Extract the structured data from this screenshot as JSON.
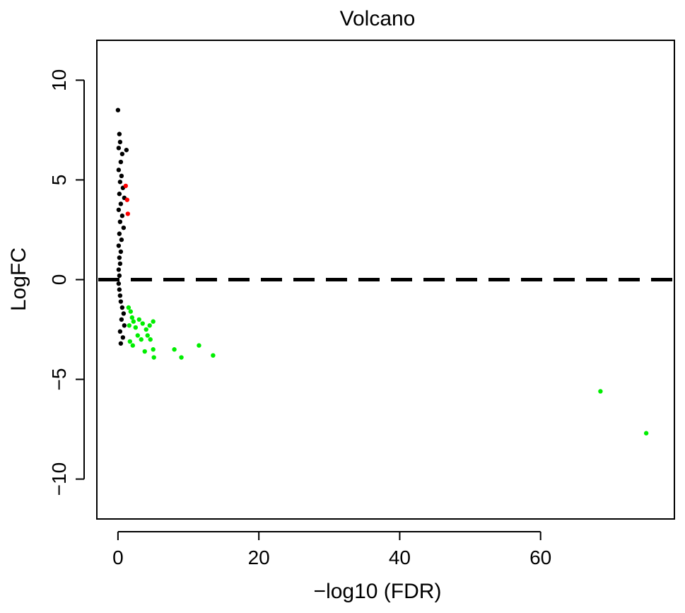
{
  "chart_data": {
    "type": "scatter",
    "title": "Volcano",
    "xlabel": "−log10 (FDR)",
    "ylabel": "LogFC",
    "xlim": [
      -3,
      79
    ],
    "ylim": [
      -12,
      12
    ],
    "xticks": [
      0,
      20,
      40,
      60
    ],
    "xtick_labels": [
      "0",
      "20",
      "40",
      "60"
    ],
    "yticks": [
      -10,
      -5,
      0,
      5,
      10
    ],
    "ytick_labels": [
      "−10",
      "−5",
      "0",
      "5",
      "10"
    ],
    "grid": false,
    "legend": "none",
    "reference_line": {
      "y": 0,
      "style": "dashed",
      "color": "#000000"
    },
    "series": [
      {
        "color": "#000000",
        "points": [
          [
            0.0,
            8.5
          ],
          [
            0.2,
            7.3
          ],
          [
            0.3,
            6.9
          ],
          [
            0.1,
            6.6
          ],
          [
            1.2,
            6.5
          ],
          [
            0.6,
            6.3
          ],
          [
            0.4,
            5.9
          ],
          [
            0.1,
            5.5
          ],
          [
            0.5,
            5.2
          ],
          [
            0.3,
            4.9
          ],
          [
            0.7,
            4.6
          ],
          [
            0.2,
            4.3
          ],
          [
            0.9,
            4.1
          ],
          [
            0.4,
            3.8
          ],
          [
            0.1,
            3.5
          ],
          [
            0.6,
            3.2
          ],
          [
            0.3,
            2.9
          ],
          [
            0.8,
            2.6
          ],
          [
            0.2,
            2.3
          ],
          [
            0.5,
            2.0
          ],
          [
            0.1,
            1.7
          ],
          [
            0.4,
            1.4
          ],
          [
            0.2,
            1.1
          ],
          [
            0.3,
            0.8
          ],
          [
            0.1,
            0.5
          ],
          [
            0.2,
            0.2
          ],
          [
            0.1,
            -0.2
          ],
          [
            0.2,
            -0.5
          ],
          [
            0.3,
            -0.8
          ],
          [
            0.4,
            -1.1
          ],
          [
            0.6,
            -1.4
          ],
          [
            0.8,
            -1.7
          ],
          [
            0.5,
            -2.0
          ],
          [
            0.9,
            -2.3
          ],
          [
            0.3,
            -2.6
          ],
          [
            0.7,
            -2.9
          ],
          [
            0.4,
            -3.2
          ]
        ]
      },
      {
        "color": "#ff0000",
        "points": [
          [
            1.1,
            4.7
          ],
          [
            1.3,
            4.0
          ],
          [
            1.4,
            3.3
          ]
        ]
      },
      {
        "color": "#00ee00",
        "points": [
          [
            1.5,
            -1.4
          ],
          [
            1.8,
            -1.6
          ],
          [
            2.0,
            -1.9
          ],
          [
            2.2,
            -2.1
          ],
          [
            1.6,
            -2.3
          ],
          [
            2.5,
            -2.4
          ],
          [
            3.0,
            -2.0
          ],
          [
            3.5,
            -2.2
          ],
          [
            4.0,
            -2.5
          ],
          [
            4.5,
            -2.3
          ],
          [
            5.0,
            -2.1
          ],
          [
            2.8,
            -2.8
          ],
          [
            3.3,
            -3.0
          ],
          [
            4.2,
            -2.8
          ],
          [
            1.7,
            -3.1
          ],
          [
            2.1,
            -3.3
          ],
          [
            3.8,
            -3.6
          ],
          [
            5.0,
            -3.5
          ],
          [
            4.6,
            -3.0
          ],
          [
            5.1,
            -3.9
          ],
          [
            8.0,
            -3.5
          ],
          [
            9.0,
            -3.9
          ],
          [
            11.5,
            -3.3
          ],
          [
            13.5,
            -3.8
          ],
          [
            68.5,
            -5.6
          ],
          [
            75.0,
            -7.7
          ]
        ]
      }
    ]
  }
}
